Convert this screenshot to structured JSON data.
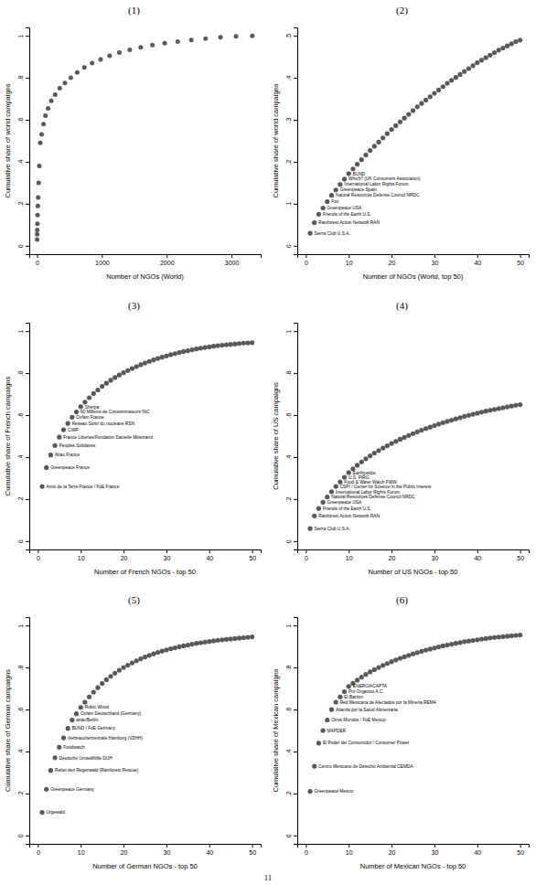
{
  "page_number": "11",
  "chart_data": [
    {
      "type": "scatter",
      "title": "(1)",
      "x_label": "Number of NGOs (World)",
      "y_label": "Cumulative share of world campaigns",
      "color": "#595959",
      "marker": "circle",
      "grid": false,
      "x": [
        1,
        2,
        3,
        5,
        8,
        12,
        17,
        25,
        35,
        50,
        70,
        100,
        130,
        170,
        220,
        280,
        350,
        430,
        520,
        620,
        730,
        850,
        980,
        1120,
        1270,
        1430,
        1600,
        1780,
        1970,
        2170,
        2380,
        2600,
        2830,
        3070,
        3320
      ],
      "values": [
        0.03,
        0.055,
        0.075,
        0.105,
        0.146,
        0.19,
        0.23,
        0.3,
        0.38,
        0.49,
        0.53,
        0.58,
        0.62,
        0.655,
        0.69,
        0.72,
        0.75,
        0.775,
        0.8,
        0.825,
        0.85,
        0.87,
        0.888,
        0.905,
        0.92,
        0.933,
        0.945,
        0.956,
        0.965,
        0.973,
        0.98,
        0.987,
        0.993,
        0.997,
        1
      ],
      "xlim": [
        -120,
        3450
      ],
      "xticks": [
        0,
        1000,
        2000,
        3000
      ],
      "ylim": [
        -0.04,
        1.04
      ],
      "yticks": [
        0,
        {
          "value": 0.2,
          "label": ".2"
        },
        {
          "value": 0.4,
          "label": ".4"
        },
        {
          "value": 0.6,
          "label": ".6"
        },
        {
          "value": 0.8,
          "label": ".8"
        },
        1
      ]
    },
    {
      "type": "scatter",
      "title": "(2)",
      "x_label": "Number of NGOs (World, top 50)",
      "y_label": "Cumulative share of world campaigns",
      "color": "#595959",
      "marker": "circle",
      "grid": false,
      "x": [
        1,
        2,
        3,
        4,
        5,
        6,
        7,
        8,
        9,
        10,
        11,
        12,
        13,
        14,
        15,
        16,
        17,
        18,
        19,
        20,
        21,
        22,
        23,
        24,
        25,
        26,
        27,
        28,
        29,
        30,
        31,
        32,
        33,
        34,
        35,
        36,
        37,
        38,
        39,
        40,
        41,
        42,
        43,
        44,
        45,
        46,
        47,
        48,
        49,
        50
      ],
      "values": [
        0.03,
        0.055,
        0.075,
        0.09,
        0.105,
        0.12,
        0.133,
        0.146,
        0.159,
        0.172,
        0.183,
        0.194,
        0.205,
        0.216,
        0.227,
        0.237,
        0.247,
        0.257,
        0.267,
        0.277,
        0.286,
        0.295,
        0.304,
        0.313,
        0.322,
        0.331,
        0.339,
        0.347,
        0.355,
        0.363,
        0.371,
        0.379,
        0.387,
        0.394,
        0.401,
        0.408,
        0.415,
        0.422,
        0.429,
        0.436,
        0.442,
        0.448,
        0.454,
        0.46,
        0.466,
        0.471,
        0.476,
        0.481,
        0.486,
        0.49
      ],
      "point_labels": [
        "Sierra Club U.S.A.",
        "Rainforest Action Network RAN",
        "Friends of the Earth U.S.",
        "Greenpeace USA",
        "Fox",
        "Natural Resources Defense Council NRDC",
        "Greenpeace Spain",
        "International Labor Rights Forum",
        "Which? (UK Consumers Association)",
        "BUND",
        null,
        null,
        null,
        null,
        null,
        null,
        null,
        null,
        null,
        null,
        null,
        null,
        null,
        null,
        null,
        null,
        null,
        null,
        null,
        null,
        null,
        null,
        null,
        null,
        null,
        null,
        null,
        null,
        null,
        null,
        null,
        null,
        null,
        null,
        null,
        null,
        null,
        null,
        null,
        null
      ],
      "xlim": [
        -2,
        52
      ],
      "xticks": [
        0,
        10,
        20,
        30,
        40,
        50
      ],
      "ylim": [
        -0.02,
        0.52
      ],
      "yticks": [
        0,
        {
          "value": 0.1,
          "label": ".1"
        },
        {
          "value": 0.2,
          "label": ".2"
        },
        {
          "value": 0.3,
          "label": ".3"
        },
        {
          "value": 0.4,
          "label": ".4"
        },
        {
          "value": 0.5,
          "label": ".5"
        }
      ]
    },
    {
      "type": "scatter",
      "title": "(3)",
      "x_label": "Number of French NGOs - top 50",
      "y_label": "Cumulative share of French campaigns",
      "color": "#595959",
      "marker": "circle",
      "grid": false,
      "x": [
        1,
        2,
        3,
        4,
        5,
        6,
        7,
        8,
        9,
        10,
        11,
        12,
        13,
        14,
        15,
        16,
        17,
        18,
        19,
        20,
        21,
        22,
        23,
        24,
        25,
        26,
        27,
        28,
        29,
        30,
        31,
        32,
        33,
        34,
        35,
        36,
        37,
        38,
        39,
        40,
        41,
        42,
        43,
        44,
        45,
        46,
        47,
        48,
        49,
        50
      ],
      "values": [
        0.26,
        0.35,
        0.41,
        0.455,
        0.495,
        0.53,
        0.56,
        0.59,
        0.615,
        0.64,
        0.662,
        0.683,
        0.703,
        0.72,
        0.737,
        0.752,
        0.766,
        0.779,
        0.791,
        0.802,
        0.812,
        0.822,
        0.831,
        0.84,
        0.848,
        0.856,
        0.863,
        0.87,
        0.876,
        0.882,
        0.888,
        0.893,
        0.898,
        0.903,
        0.907,
        0.911,
        0.915,
        0.919,
        0.922,
        0.925,
        0.928,
        0.931,
        0.933,
        0.935,
        0.937,
        0.939,
        0.941,
        0.943,
        0.944,
        0.945
      ],
      "point_labels": [
        "Amis de la Terre France / FoE France",
        "Greenpeace France",
        "Attac France",
        "Peuples Solidaires",
        "France Libertes/Fondation Danielle Mitterrand",
        "CIWF",
        "Reseau Sortir du nucleaire RSN",
        "Oxfam France",
        "60 Millions de Consommateurs INC",
        "Sherpa",
        null,
        null,
        null,
        null,
        null,
        null,
        null,
        null,
        null,
        null,
        null,
        null,
        null,
        null,
        null,
        null,
        null,
        null,
        null,
        null,
        null,
        null,
        null,
        null,
        null,
        null,
        null,
        null,
        null,
        null,
        null,
        null,
        null,
        null,
        null,
        null,
        null,
        null,
        null,
        null
      ],
      "xlim": [
        -2,
        52
      ],
      "xticks": [
        0,
        10,
        20,
        30,
        40,
        50
      ],
      "ylim": [
        -0.04,
        1.04
      ],
      "yticks": [
        0,
        {
          "value": 0.2,
          "label": ".2"
        },
        {
          "value": 0.4,
          "label": ".4"
        },
        {
          "value": 0.6,
          "label": ".6"
        },
        {
          "value": 0.8,
          "label": ".8"
        },
        1
      ]
    },
    {
      "type": "scatter",
      "title": "(4)",
      "x_label": "Number of US NGOs - top 50",
      "y_label": "Cumulative share of US campaigns",
      "color": "#595959",
      "marker": "circle",
      "grid": false,
      "x": [
        1,
        2,
        3,
        4,
        5,
        6,
        7,
        8,
        9,
        10,
        11,
        12,
        13,
        14,
        15,
        16,
        17,
        18,
        19,
        20,
        21,
        22,
        23,
        24,
        25,
        26,
        27,
        28,
        29,
        30,
        31,
        32,
        33,
        34,
        35,
        36,
        37,
        38,
        39,
        40,
        41,
        42,
        43,
        44,
        45,
        46,
        47,
        48,
        49,
        50
      ],
      "values": [
        0.06,
        0.12,
        0.155,
        0.185,
        0.21,
        0.235,
        0.26,
        0.282,
        0.304,
        0.326,
        0.344,
        0.361,
        0.377,
        0.392,
        0.406,
        0.419,
        0.431,
        0.443,
        0.454,
        0.465,
        0.475,
        0.485,
        0.494,
        0.503,
        0.512,
        0.52,
        0.528,
        0.536,
        0.543,
        0.55,
        0.557,
        0.564,
        0.57,
        0.576,
        0.582,
        0.588,
        0.594,
        0.599,
        0.604,
        0.609,
        0.614,
        0.619,
        0.623,
        0.627,
        0.631,
        0.635,
        0.639,
        0.643,
        0.647,
        0.65
      ],
      "point_labels": [
        "Sierra Club U.S.A.",
        "Rainforest Action Network RAN",
        "Friends of the Earth U.S.",
        "Greenpeace USA",
        "Natural Resources Defense Council NRDC",
        "International Labor Rights Forum",
        "CSPI / Center for Science in the Public Interest",
        "Food & Water Watch FWW",
        "U.S. PIRG",
        "Earthjustice",
        null,
        null,
        null,
        null,
        null,
        null,
        null,
        null,
        null,
        null,
        null,
        null,
        null,
        null,
        null,
        null,
        null,
        null,
        null,
        null,
        null,
        null,
        null,
        null,
        null,
        null,
        null,
        null,
        null,
        null,
        null,
        null,
        null,
        null,
        null,
        null,
        null,
        null,
        null,
        null
      ],
      "xlim": [
        -2,
        52
      ],
      "xticks": [
        0,
        10,
        20,
        30,
        40,
        50
      ],
      "ylim": [
        -0.04,
        1.04
      ],
      "yticks": [
        0,
        {
          "value": 0.2,
          "label": ".2"
        },
        {
          "value": 0.4,
          "label": ".4"
        },
        {
          "value": 0.6,
          "label": ".6"
        },
        {
          "value": 0.8,
          "label": ".8"
        },
        1
      ]
    },
    {
      "type": "scatter",
      "title": "(5)",
      "x_label": "Number of German NGOs - top 50",
      "y_label": "Cumulative share of German campaigns",
      "color": "#595959",
      "marker": "circle",
      "grid": false,
      "x": [
        1,
        2,
        3,
        4,
        5,
        6,
        7,
        8,
        9,
        10,
        11,
        12,
        13,
        14,
        15,
        16,
        17,
        18,
        19,
        20,
        21,
        22,
        23,
        24,
        25,
        26,
        27,
        28,
        29,
        30,
        31,
        32,
        33,
        34,
        35,
        36,
        37,
        38,
        39,
        40,
        41,
        42,
        43,
        44,
        45,
        46,
        47,
        48,
        49,
        50
      ],
      "values": [
        0.11,
        0.22,
        0.31,
        0.37,
        0.42,
        0.465,
        0.51,
        0.55,
        0.58,
        0.61,
        0.635,
        0.66,
        0.683,
        0.704,
        0.724,
        0.742,
        0.758,
        0.773,
        0.787,
        0.8,
        0.811,
        0.822,
        0.832,
        0.841,
        0.85,
        0.858,
        0.865,
        0.872,
        0.878,
        0.884,
        0.889,
        0.894,
        0.899,
        0.903,
        0.907,
        0.911,
        0.915,
        0.918,
        0.921,
        0.924,
        0.927,
        0.93,
        0.932,
        0.934,
        0.936,
        0.938,
        0.94,
        0.942,
        0.944,
        0.946
      ],
      "point_labels": [
        "Urgewald",
        "Greenpeace Germany",
        "Rettet den Regenwald (Rainforest Rescue)",
        "Deutsche Umwelthilfe DUH",
        "Foodwatch",
        "Verbraucherzentrale Hamburg (VZHH)",
        "BUND / FoE Germany",
        "attac/Berlin",
        "Oxfam Deutschland (Germany)",
        "Robin Wood",
        null,
        null,
        null,
        null,
        null,
        null,
        null,
        null,
        null,
        null,
        null,
        null,
        null,
        null,
        null,
        null,
        null,
        null,
        null,
        null,
        null,
        null,
        null,
        null,
        null,
        null,
        null,
        null,
        null,
        null,
        null,
        null,
        null,
        null,
        null,
        null,
        null,
        null,
        null,
        null
      ],
      "xlim": [
        -2,
        52
      ],
      "xticks": [
        0,
        10,
        20,
        30,
        40,
        50
      ],
      "ylim": [
        -0.04,
        1.04
      ],
      "yticks": [
        0,
        {
          "value": 0.2,
          "label": ".2"
        },
        {
          "value": 0.4,
          "label": ".4"
        },
        {
          "value": 0.6,
          "label": ".6"
        },
        {
          "value": 0.8,
          "label": ".8"
        },
        1
      ]
    },
    {
      "type": "scatter",
      "title": "(6)",
      "x_label": "Number of Mexican NGOs - top 50",
      "y_label": "Cumulative share of Mexican campaigns",
      "color": "#595959",
      "marker": "circle",
      "grid": false,
      "x": [
        1,
        2,
        3,
        4,
        5,
        6,
        7,
        8,
        9,
        10,
        11,
        12,
        13,
        14,
        15,
        16,
        17,
        18,
        19,
        20,
        21,
        22,
        23,
        24,
        25,
        26,
        27,
        28,
        29,
        30,
        31,
        32,
        33,
        34,
        35,
        36,
        37,
        38,
        39,
        40,
        41,
        42,
        43,
        44,
        45,
        46,
        47,
        48,
        49,
        50
      ],
      "values": [
        0.21,
        0.33,
        0.44,
        0.5,
        0.55,
        0.6,
        0.635,
        0.66,
        0.685,
        0.71,
        0.725,
        0.74,
        0.754,
        0.767,
        0.779,
        0.79,
        0.8,
        0.81,
        0.819,
        0.828,
        0.836,
        0.844,
        0.851,
        0.858,
        0.865,
        0.871,
        0.877,
        0.883,
        0.888,
        0.893,
        0.898,
        0.903,
        0.907,
        0.911,
        0.915,
        0.919,
        0.923,
        0.926,
        0.929,
        0.932,
        0.935,
        0.938,
        0.941,
        0.943,
        0.945,
        0.947,
        0.949,
        0.951,
        0.953,
        0.955
      ],
      "point_labels": [
        "Greenpeace Mexico",
        "Centro Mexicano de Derecho Ambiental CEMDA",
        "El Poder del Consumidor / Consumer Power",
        "MAPDER",
        "Otros Mundos / FoE Mexico",
        "Alianza por la Salud Alimentaria",
        "Red Mexicana de Afectados por la Mineria REMA",
        "El Barzon",
        "Pro Organico A.C.",
        "ENERGIACAPTA",
        null,
        null,
        null,
        null,
        null,
        null,
        null,
        null,
        null,
        null,
        null,
        null,
        null,
        null,
        null,
        null,
        null,
        null,
        null,
        null,
        null,
        null,
        null,
        null,
        null,
        null,
        null,
        null,
        null,
        null,
        null,
        null,
        null,
        null,
        null,
        null,
        null,
        null,
        null,
        null
      ],
      "xlim": [
        -2,
        52
      ],
      "xticks": [
        0,
        10,
        20,
        30,
        40,
        50
      ],
      "ylim": [
        -0.04,
        1.04
      ],
      "yticks": [
        0,
        {
          "value": 0.2,
          "label": ".2"
        },
        {
          "value": 0.4,
          "label": ".4"
        },
        {
          "value": 0.6,
          "label": ".6"
        },
        {
          "value": 0.8,
          "label": ".8"
        },
        1
      ]
    }
  ]
}
